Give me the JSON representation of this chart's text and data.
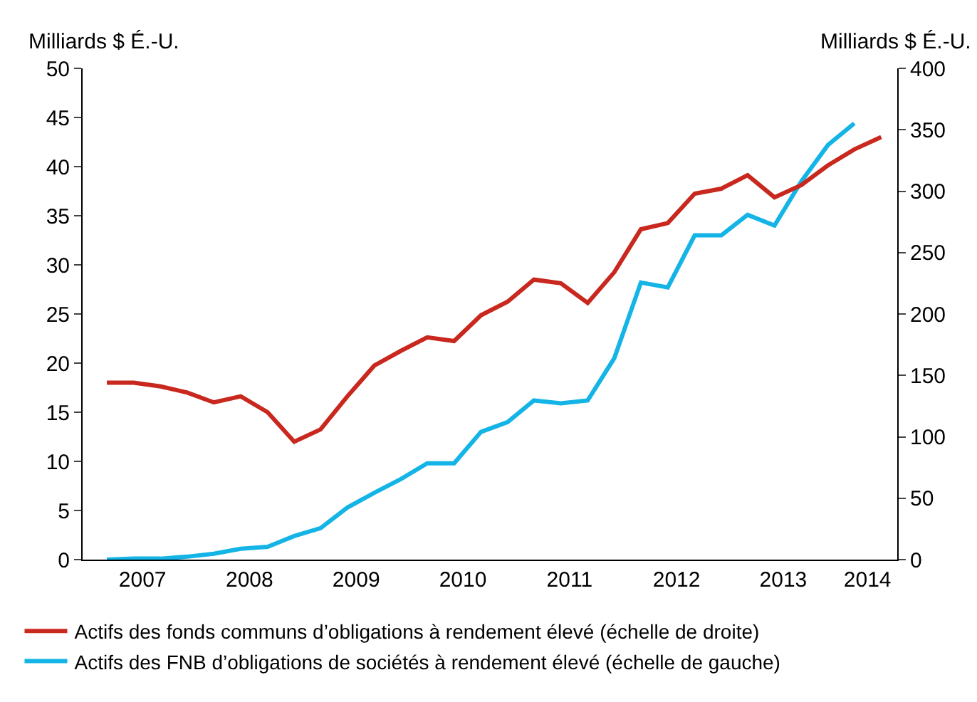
{
  "chart_data": {
    "type": "line",
    "ylabel": "Milliards $ É.-U.",
    "y2label": "Milliards $ É.-U.",
    "x": [
      "2007-03",
      "2007-06",
      "2007-09",
      "2007-12",
      "2008-03",
      "2008-06",
      "2008-09",
      "2008-12",
      "2009-03",
      "2009-06",
      "2009-09",
      "2009-12",
      "2010-03",
      "2010-06",
      "2010-09",
      "2010-12",
      "2011-03",
      "2011-06",
      "2011-09",
      "2011-12",
      "2012-03",
      "2012-06",
      "2012-09",
      "2012-12",
      "2013-03",
      "2013-06",
      "2013-09",
      "2013-12",
      "2014-03",
      "2014-06"
    ],
    "series": [
      {
        "name": "Actifs des fonds communs d’obligations à rendement élevé (échelle de droite)",
        "color": "#c8281e",
        "axis": "y2",
        "values": [
          144,
          144,
          141,
          136,
          128,
          133,
          120,
          96,
          106,
          133,
          158,
          170,
          181,
          178,
          199,
          210,
          228,
          225,
          209,
          234,
          269,
          274,
          298,
          302,
          313,
          295,
          305,
          321,
          334,
          344
        ]
      },
      {
        "name": "Actifs des FNB d’obligations de sociétés à rendement élevé (échelle de gauche)",
        "color": "#14b4e6",
        "values": [
          0,
          0.1,
          0.1,
          0.3,
          0.6,
          1.1,
          1.3,
          2.4,
          3.2,
          5.3,
          6.8,
          8.2,
          9.8,
          9.8,
          13.0,
          14.0,
          16.2,
          15.9,
          16.2,
          20.5,
          28.2,
          27.7,
          33.0,
          33.0,
          35.1,
          34.0,
          38.5,
          42.2,
          44.4,
          null
        ]
      }
    ],
    "xlim": [
      "2006-12-08",
      "2014-07-26"
    ],
    "xticks": [
      {
        "value": "2007-07-01",
        "label": "2007"
      },
      {
        "value": "2008-07-01",
        "label": "2008"
      },
      {
        "value": "2009-07-01",
        "label": "2009"
      },
      {
        "value": "2010-07-01",
        "label": "2010"
      },
      {
        "value": "2011-07-01",
        "label": "2011"
      },
      {
        "value": "2012-07-01",
        "label": "2012"
      },
      {
        "value": "2013-07-01",
        "label": "2013"
      },
      {
        "value": "2014-04-15",
        "label": "2014"
      }
    ],
    "ylim": [
      0,
      50
    ],
    "yticks": [
      0,
      5,
      10,
      15,
      20,
      25,
      30,
      35,
      40,
      45,
      50
    ],
    "y2lim": [
      0,
      400
    ],
    "y2ticks": [
      0,
      50,
      100,
      150,
      200,
      250,
      300,
      350,
      400
    ],
    "legend": "bottom",
    "line_style": "solid",
    "marker": "none"
  }
}
